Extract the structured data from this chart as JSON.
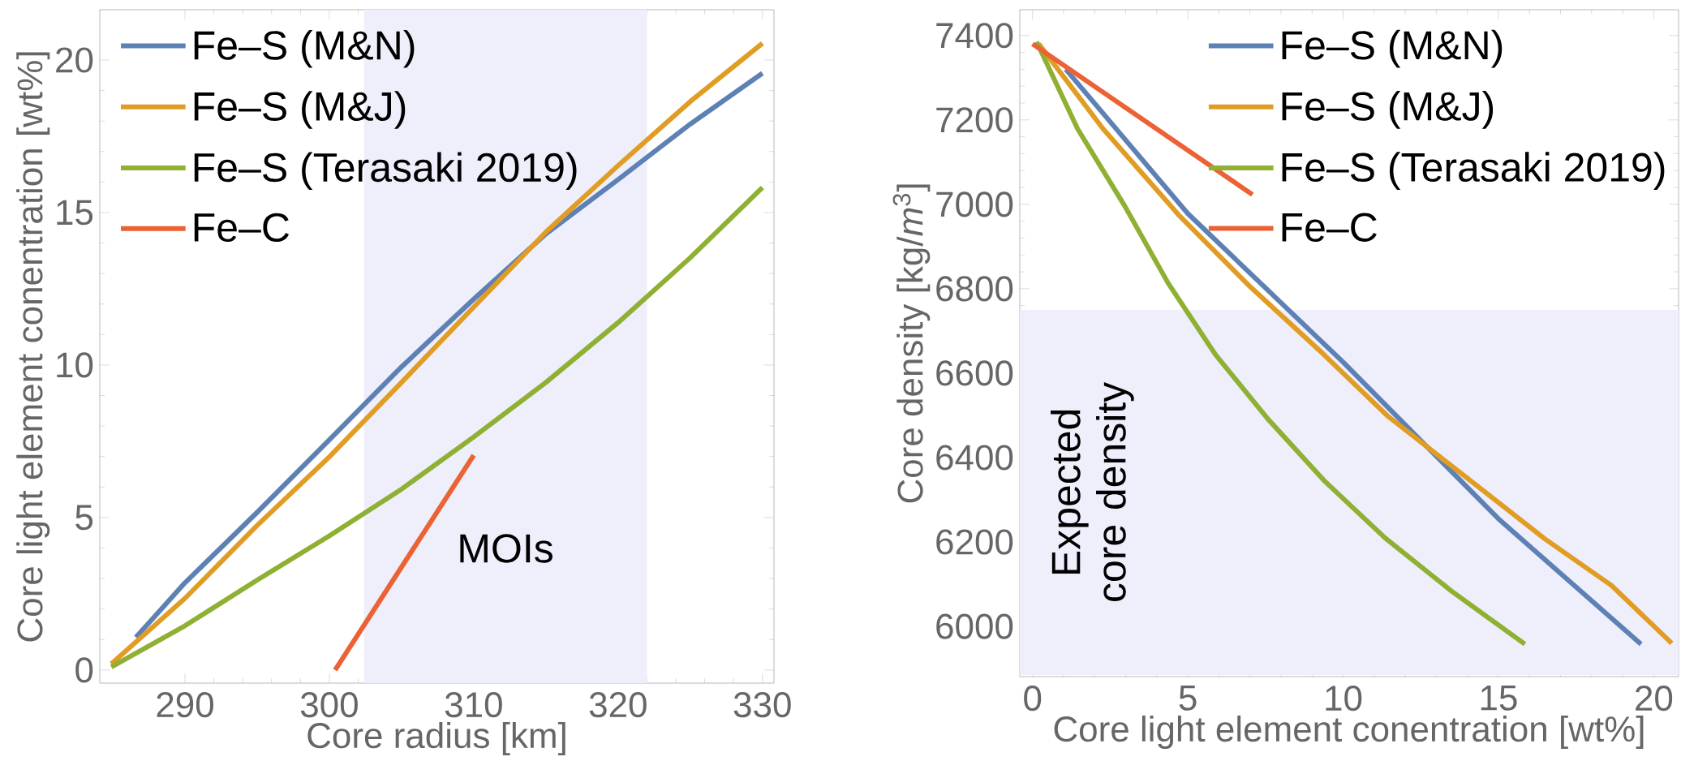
{
  "chart_data": [
    {
      "type": "line",
      "xlabel": "Core radius [km]",
      "ylabel": "Core light element conentration [wt%]",
      "xlim": [
        284.1,
        330.8
      ],
      "ylim": [
        -0.43,
        21.65
      ],
      "xticks": [
        290,
        300,
        310,
        320,
        330
      ],
      "yticks": [
        0,
        5,
        10,
        15,
        20
      ],
      "legend": "top left",
      "bands": [
        {
          "axis": "x",
          "from": 302.4,
          "to": 322.0,
          "label": "MOIs",
          "color": "#eeeffb"
        }
      ],
      "series": [
        {
          "name": "Fe–S (M&N)",
          "color": "#5e81b5",
          "x": [
            286.6,
            290,
            295,
            300,
            305,
            310,
            315,
            320,
            325,
            330
          ],
          "values": [
            1.07,
            2.86,
            5.17,
            7.55,
            9.94,
            12.16,
            14.3,
            16.08,
            17.9,
            19.57
          ]
        },
        {
          "name": "Fe–S (M&J)",
          "color": "#e19c24",
          "x": [
            284.9,
            290,
            295,
            300,
            305,
            310,
            315,
            320,
            325,
            330
          ],
          "values": [
            0.2,
            2.35,
            4.74,
            6.99,
            9.43,
            11.9,
            14.36,
            16.54,
            18.64,
            20.55
          ]
        },
        {
          "name": "Fe–S (Terasaki 2019)",
          "color": "#8fb032",
          "x": [
            284.9,
            290,
            295,
            300,
            305,
            310,
            315,
            320,
            325,
            330
          ],
          "values": [
            0.1,
            1.45,
            2.95,
            4.4,
            5.93,
            7.64,
            9.43,
            11.39,
            13.52,
            15.82
          ]
        },
        {
          "name": "Fe–C",
          "color": "#eb6235",
          "x": [
            300.4,
            310
          ],
          "values": [
            0,
            7.04
          ]
        }
      ]
    },
    {
      "type": "line",
      "xlabel": "Core light element conentration [wt%]",
      "ylabel": "Core density [kg/*m*$^{3}$]",
      "xlim": [
        -0.41,
        20.8
      ],
      "ylim": [
        5881,
        7461
      ],
      "xticks": [
        0,
        5,
        10,
        15,
        20
      ],
      "yticks": [
        6000,
        6200,
        6400,
        6600,
        6800,
        7000,
        7200,
        7400
      ],
      "legend": "top right",
      "bands": [
        {
          "axis": "y",
          "from": 5885,
          "to": 6750,
          "label": "Expected core density",
          "color": "#eeeffb"
        }
      ],
      "series": [
        {
          "name": "Fe–S (M&N)",
          "color": "#5e81b5",
          "x": [
            1.07,
            5,
            10,
            15,
            19.59
          ],
          "values": [
            7320,
            6978,
            6626,
            6255,
            5958
          ]
        },
        {
          "name": "Fe–S (M&J)",
          "color": "#e19c24",
          "x": [
            0.2,
            2.27,
            4.74,
            6.96,
            9.38,
            11.44,
            14.4,
            16.5,
            18.64,
            20.58
          ],
          "values": [
            7380,
            7179,
            6972,
            6808,
            6644,
            6498,
            6328,
            6207,
            6097,
            5960
          ]
        },
        {
          "name": "Fe–S (Terasaki 2019)",
          "color": "#8fb032",
          "x": [
            0.13,
            1.45,
            2.96,
            4.36,
            5.89,
            7.57,
            9.38,
            11.36,
            13.5,
            15.85
          ],
          "values": [
            7385,
            7179,
            6997,
            6814,
            6644,
            6492,
            6346,
            6209,
            6083,
            5958
          ]
        },
        {
          "name": "Fe–C",
          "color": "#eb6235",
          "x": [
            0,
            7.08
          ],
          "values": [
            7380,
            7023
          ]
        }
      ]
    }
  ]
}
